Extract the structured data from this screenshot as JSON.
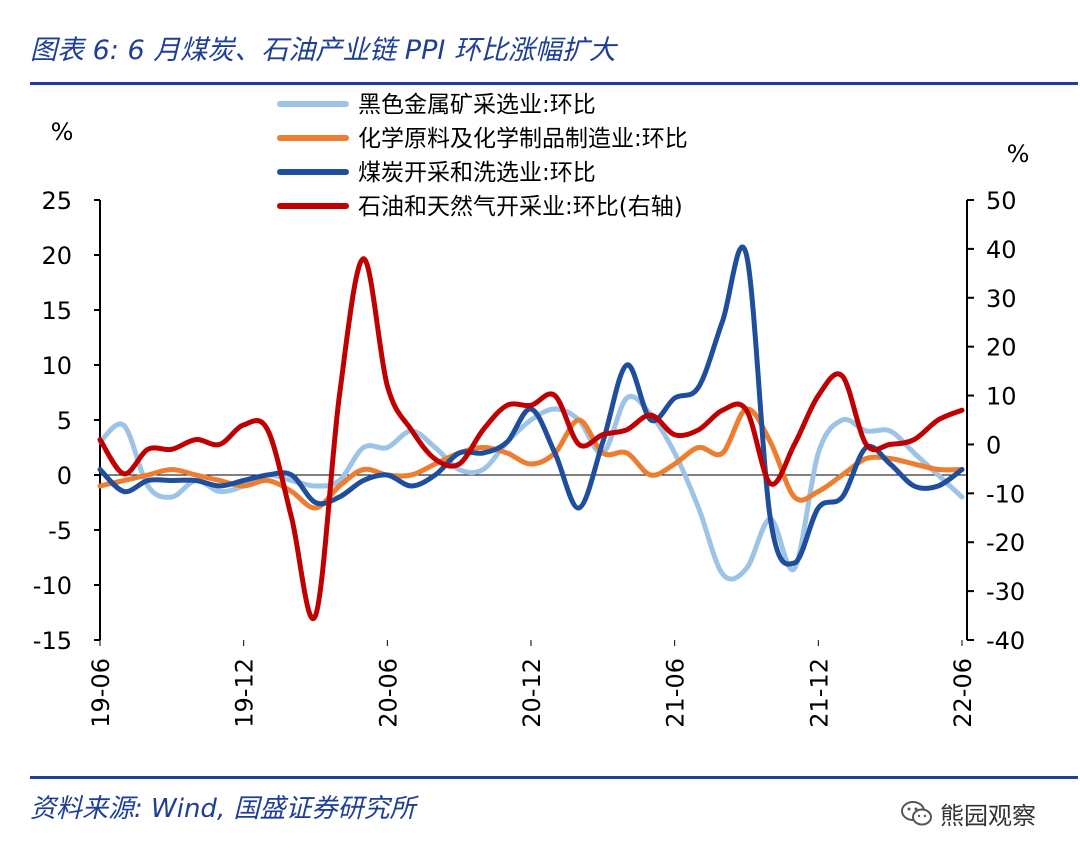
{
  "title": "图表 6:  6 月煤炭、石油产业链 PPI 环比涨幅扩大",
  "source": "资料来源:  Wind, 国盛证券研究所",
  "watermark": "熊园观察",
  "watermark_icon": "wechat-icon",
  "chart_data": {
    "type": "line",
    "title": "图表 6:  6 月煤炭、石油产业链 PPI 环比涨幅扩大",
    "left_axis_unit": "%",
    "right_axis_unit": "%",
    "ylim_left": [
      -15,
      25
    ],
    "yticks_left": [
      25,
      20,
      15,
      10,
      5,
      0,
      -5,
      -10,
      -15
    ],
    "ylim_right": [
      -40,
      50
    ],
    "yticks_right": [
      50,
      40,
      30,
      20,
      10,
      0,
      -10,
      -20,
      -30,
      -40
    ],
    "x": [
      "19-06",
      "19-07",
      "19-08",
      "19-09",
      "19-10",
      "19-11",
      "19-12",
      "20-01",
      "20-02",
      "20-03",
      "20-04",
      "20-05",
      "20-06",
      "20-07",
      "20-08",
      "20-09",
      "20-10",
      "20-11",
      "20-12",
      "21-01",
      "21-02",
      "21-03",
      "21-04",
      "21-05",
      "21-06",
      "21-07",
      "21-08",
      "21-09",
      "21-10",
      "21-11",
      "21-12",
      "22-01",
      "22-02",
      "22-03",
      "22-04",
      "22-05",
      "22-06"
    ],
    "xtick_labels": [
      "19-06",
      "19-12",
      "20-06",
      "20-12",
      "21-06",
      "21-12",
      "22-06"
    ],
    "series": [
      {
        "name": "黑色金属矿采选业:环比",
        "axis": "left",
        "color": "#9dc3e6",
        "values": [
          3,
          4.5,
          -1,
          -2,
          -0.5,
          -1.5,
          -1,
          0,
          -0.5,
          -1,
          -0.5,
          2.5,
          2.5,
          4,
          2.5,
          0.5,
          0.5,
          3,
          5,
          6,
          5,
          2,
          7,
          5.5,
          2,
          -3,
          -9,
          -8.5,
          -4,
          -8.5,
          2,
          5,
          4,
          4,
          2,
          0,
          -2
        ]
      },
      {
        "name": "化学原料及化学制品制造业:环比",
        "axis": "left",
        "color": "#ed7d31",
        "values": [
          -1,
          -0.5,
          0,
          0.5,
          0,
          -0.5,
          -1,
          -0.5,
          -1.5,
          -3,
          -1,
          0.5,
          0,
          0,
          1,
          2,
          2.5,
          2,
          1,
          2,
          5,
          2,
          2,
          0,
          1,
          2.5,
          2,
          6,
          3,
          -2,
          -1.5,
          0,
          1.5,
          1.5,
          1,
          0.5,
          0.5
        ]
      },
      {
        "name": "煤炭开采和洗选业:环比",
        "axis": "left",
        "color": "#1f4e9c",
        "values": [
          0.5,
          -1.5,
          -0.5,
          -0.5,
          -0.5,
          -1,
          -0.5,
          0,
          0,
          -2.5,
          -2,
          -0.5,
          0,
          -1,
          0,
          2,
          2,
          3,
          6,
          2,
          -3,
          3,
          10,
          5,
          7,
          8,
          14,
          20,
          -4,
          -8,
          -3,
          -2,
          2.5,
          1,
          -1,
          -1,
          0.5
        ]
      },
      {
        "name": "石油和天然气开采业:环比(右轴)",
        "axis": "right",
        "color": "#c00000",
        "values": [
          1,
          -6,
          -1,
          -1,
          1,
          0,
          4,
          3,
          -15,
          -35,
          10,
          38,
          12,
          3,
          -3,
          -4,
          3,
          8,
          8,
          10,
          0,
          2,
          3,
          6,
          2,
          3,
          7,
          7,
          -8,
          0,
          10,
          14,
          0,
          0,
          1,
          5,
          7
        ]
      }
    ]
  }
}
